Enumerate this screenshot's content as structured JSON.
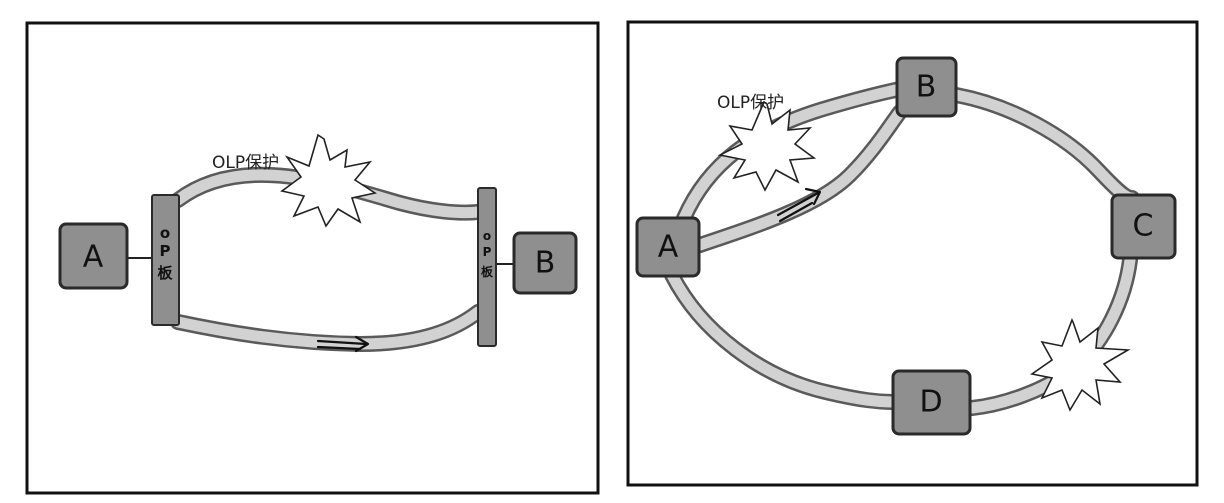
{
  "left_panel": {
    "node_a": "A",
    "node_b": "B",
    "board_left": {
      "top": "o",
      "mid": "P",
      "bottom": "板"
    },
    "board_right": {
      "top": "o",
      "mid": "P",
      "bottom": "板"
    },
    "olp_label": "OLP保护"
  },
  "right_panel": {
    "node_a": "A",
    "node_b": "B",
    "node_c": "C",
    "node_d": "D",
    "olp_label": "OLP保护"
  },
  "colors": {
    "node_fill": "#8f8f8f",
    "fiber_fill": "#d2d2d2",
    "outline": "#2a2a2a",
    "background": "#ffffff"
  }
}
